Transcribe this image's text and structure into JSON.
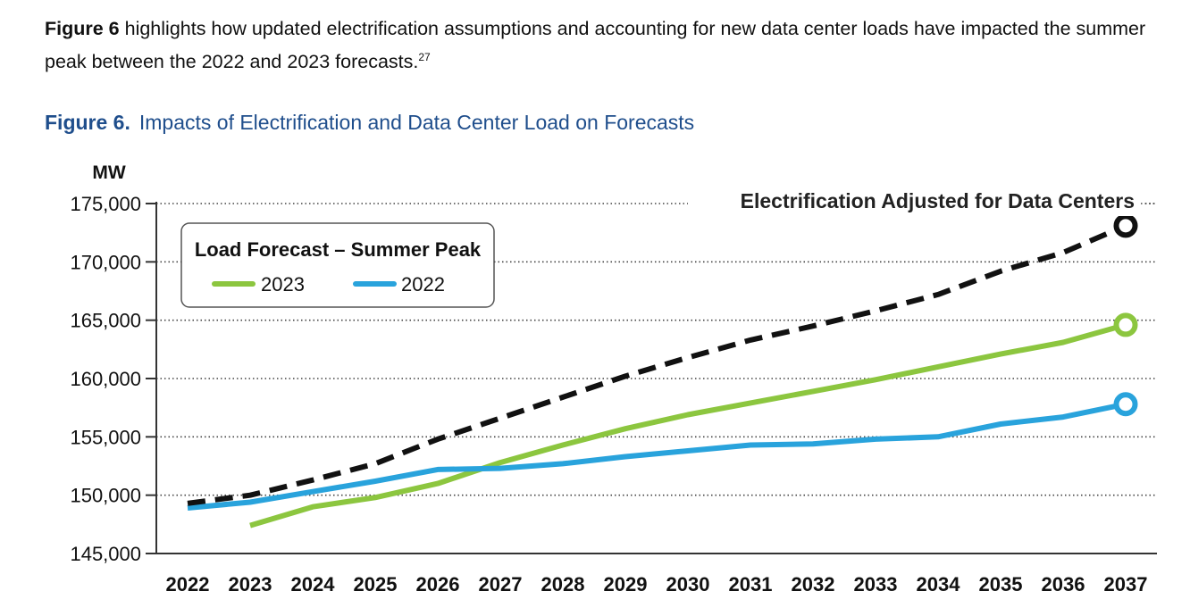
{
  "intro": {
    "lead": "Figure 6",
    "text": " highlights how updated electrification assumptions and accounting for new data center loads have impacted the summer peak between the 2022 and 2023 forecasts.",
    "footnote": "27"
  },
  "figure": {
    "label": "Figure 6.",
    "title": "Impacts of Electrification and Data Center Load on Forecasts"
  },
  "chart_data": {
    "type": "line",
    "ylabel": "MW",
    "ylim": [
      145000,
      175000
    ],
    "yticks": [
      145000,
      150000,
      155000,
      160000,
      165000,
      170000,
      175000
    ],
    "ytick_labels": [
      "145,000",
      "150,000",
      "155,000",
      "160,000",
      "165,000",
      "170,000",
      "175,000"
    ],
    "x": [
      "2022",
      "2023",
      "2024",
      "2025",
      "2026",
      "2027",
      "2028",
      "2029",
      "2030",
      "2031",
      "2032",
      "2033",
      "2034",
      "2035",
      "2036",
      "2037"
    ],
    "grid": "horizontal-dotted",
    "legend": {
      "title": "Load Forecast – Summer Peak",
      "placement": "top-left",
      "entries": [
        "2023",
        "2022"
      ]
    },
    "annotation": "Electrification Adjusted for Data Centers",
    "series": [
      {
        "name": "2023",
        "color": "#8cc63f",
        "style": "solid",
        "values": [
          null,
          147400,
          149000,
          149800,
          151000,
          152800,
          154300,
          155700,
          156900,
          157900,
          158900,
          159900,
          161000,
          162100,
          163100,
          164600
        ]
      },
      {
        "name": "2022",
        "color": "#29a3dc",
        "style": "solid",
        "values": [
          148900,
          149400,
          150300,
          151200,
          152200,
          152300,
          152700,
          153300,
          153800,
          154300,
          154400,
          154800,
          155000,
          156100,
          156700,
          157800
        ]
      },
      {
        "name": "Electrification Adjusted for Data Centers",
        "color": "#111111",
        "style": "dashed",
        "values": [
          149300,
          150000,
          151300,
          152700,
          154800,
          156600,
          158400,
          160200,
          161800,
          163300,
          164500,
          165800,
          167200,
          169200,
          170800,
          173100
        ]
      }
    ]
  }
}
